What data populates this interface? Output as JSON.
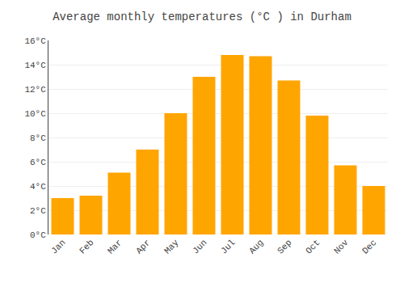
{
  "chart_data": {
    "type": "bar",
    "title": "Average monthly temperatures (°C ) in Durham",
    "categories": [
      "Jan",
      "Feb",
      "Mar",
      "Apr",
      "May",
      "Jun",
      "Jul",
      "Aug",
      "Sep",
      "Oct",
      "Nov",
      "Dec"
    ],
    "values": [
      3.0,
      3.2,
      5.1,
      7.0,
      10.0,
      13.0,
      14.8,
      14.7,
      12.7,
      9.8,
      5.7,
      4.0
    ],
    "color": "#FFA500",
    "ylim": [
      0,
      16
    ],
    "yticks": [
      {
        "value": 0,
        "label": "0°C"
      },
      {
        "value": 2,
        "label": "2°C"
      },
      {
        "value": 4,
        "label": "4°C"
      },
      {
        "value": 6,
        "label": "6°C"
      },
      {
        "value": 8,
        "label": "8°C"
      },
      {
        "value": 10,
        "label": "10°C"
      },
      {
        "value": 12,
        "label": "12°C"
      },
      {
        "value": 14,
        "label": "14°C"
      },
      {
        "value": 16,
        "label": "16°C"
      }
    ],
    "grid": true
  }
}
